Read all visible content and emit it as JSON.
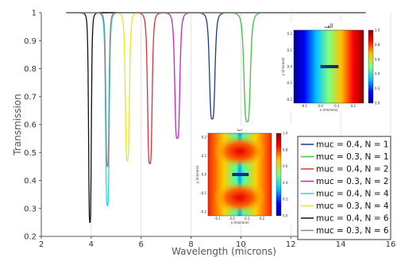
{
  "chart_data": {
    "type": "line",
    "xlabel": "Wavelength (microns)",
    "ylabel": "Transmission",
    "xlim": [
      2,
      16
    ],
    "ylim": [
      0.2,
      1.0
    ],
    "xticks": [
      2,
      4,
      6,
      8,
      10,
      12,
      14,
      16
    ],
    "yticks": [
      0.2,
      0.3,
      0.4,
      0.5,
      0.6,
      0.7,
      0.8,
      0.9,
      1
    ],
    "grid": "vertical",
    "legend_position": "bottom-right",
    "series": [
      {
        "name": "muc = 0.4, N = 1",
        "color": "#1a3a8a",
        "dip_center": 8.85,
        "dip_min": 0.62,
        "dip_width": 0.12,
        "x_start": 3.0,
        "x_end": 15.0
      },
      {
        "name": "muc = 0.3, N = 1",
        "color": "#3ec43e",
        "dip_center": 10.25,
        "dip_min": 0.61,
        "dip_width": 0.14,
        "x_start": 3.0,
        "x_end": 15.0
      },
      {
        "name": "muc = 0.4, N = 2",
        "color": "#e0303a",
        "dip_center": 6.35,
        "dip_min": 0.46,
        "dip_width": 0.1,
        "x_start": 3.0,
        "x_end": 15.0
      },
      {
        "name": "muc = 0.3, N = 2",
        "color": "#c822c8",
        "dip_center": 7.45,
        "dip_min": 0.55,
        "dip_width": 0.11,
        "x_start": 3.0,
        "x_end": 15.0
      },
      {
        "name": "muc = 0.4, N = 4",
        "color": "#28d4e8",
        "dip_center": 4.65,
        "dip_min": 0.31,
        "dip_width": 0.08,
        "x_start": 3.0,
        "x_end": 15.0
      },
      {
        "name": "muc = 0.3, N = 4",
        "color": "#e8e820",
        "dip_center": 5.45,
        "dip_min": 0.47,
        "dip_width": 0.09,
        "x_start": 3.0,
        "x_end": 15.0
      },
      {
        "name": "muc = 0.4, N = 6",
        "color": "#111111",
        "dip_center": 3.95,
        "dip_min": 0.25,
        "dip_width": 0.06,
        "x_start": 3.0,
        "x_end": 15.0
      },
      {
        "name": "muc = 0.3, N = 6",
        "color": "#888888",
        "dip_center": 4.65,
        "dip_min": 0.45,
        "dip_width": 0.07,
        "x_start": 3.0,
        "x_end": 15.0
      }
    ],
    "insets": [
      {
        "title": "الف",
        "xlabel": "x (microns)",
        "ylabel": "y (microns)",
        "colorbar_ticks": [
          "1.0",
          "0.8",
          "0.6",
          "0.4",
          "0.2",
          "0.0"
        ],
        "x_ticks": [
          "-0.1",
          "0.0",
          "0.1",
          "0.2"
        ],
        "y_ticks": [
          "0.2",
          "0.1",
          "0.0",
          "-0.1",
          "-0.2"
        ]
      },
      {
        "title": "ب",
        "xlabel": "x (microns)",
        "ylabel": "y (microns)",
        "colorbar_ticks": [
          "1.0",
          "0.8",
          "0.6",
          "0.4",
          "0.2",
          "0.0"
        ],
        "x_ticks": [
          "-0.1",
          "0.0",
          "0.1",
          "0.2"
        ],
        "y_ticks": [
          "0.2",
          "0.1",
          "0.0",
          "-0.1",
          "-0.2"
        ]
      }
    ]
  }
}
